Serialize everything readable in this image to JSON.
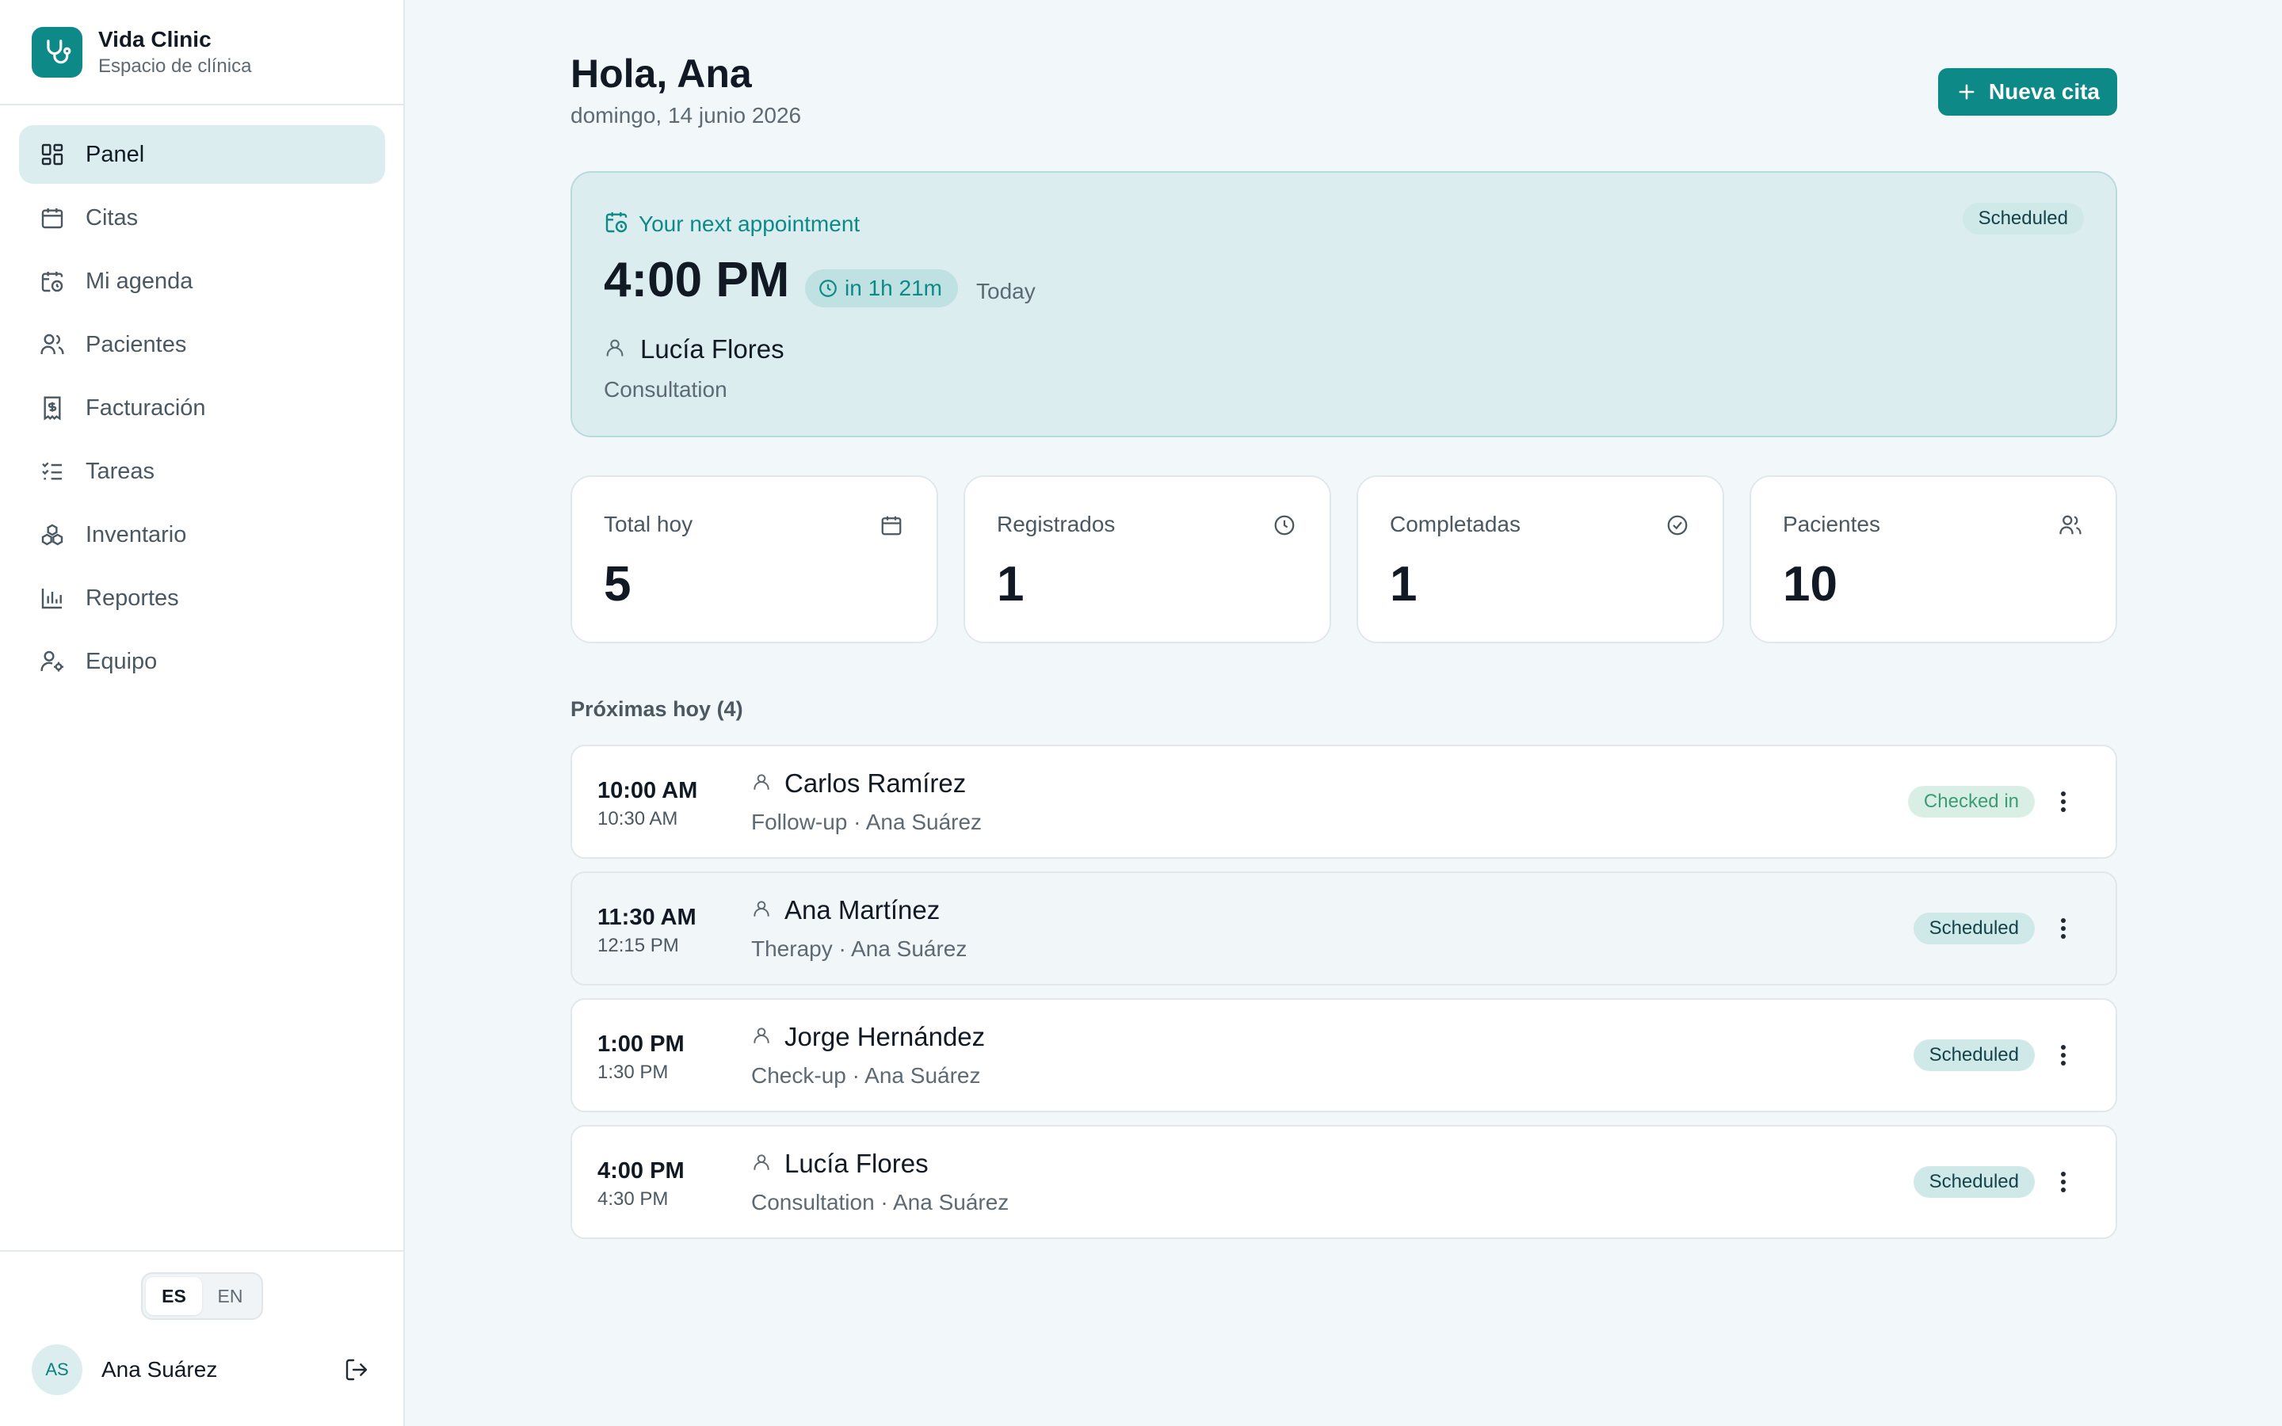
{
  "brand": {
    "name": "Vida Clinic",
    "subtitle": "Espacio de clínica",
    "logo_icon": "stethoscope-icon"
  },
  "sidebar": {
    "items": [
      {
        "label": "Panel",
        "icon": "dashboard-icon",
        "active": true
      },
      {
        "label": "Citas",
        "icon": "calendar-icon"
      },
      {
        "label": "Mi agenda",
        "icon": "calendar-clock-icon"
      },
      {
        "label": "Pacientes",
        "icon": "users-icon"
      },
      {
        "label": "Facturación",
        "icon": "receipt-icon"
      },
      {
        "label": "Tareas",
        "icon": "list-checks-icon"
      },
      {
        "label": "Inventario",
        "icon": "boxes-icon"
      },
      {
        "label": "Reportes",
        "icon": "bar-chart-icon"
      },
      {
        "label": "Equipo",
        "icon": "user-cog-icon"
      }
    ],
    "language": {
      "options": [
        "ES",
        "EN"
      ],
      "selected": "ES"
    },
    "user": {
      "initials": "AS",
      "name": "Ana Suárez"
    }
  },
  "header": {
    "greeting": "Hola, Ana",
    "date": "domingo, 14 junio 2026",
    "new_button": "Nueva cita"
  },
  "next_appointment": {
    "label": "Your next appointment",
    "status": "Scheduled",
    "time": "4:00 PM",
    "countdown": "in 1h 21m",
    "day": "Today",
    "patient": "Lucía Flores",
    "type": "Consultation"
  },
  "stats": [
    {
      "label": "Total hoy",
      "value": "5",
      "icon": "calendar-icon"
    },
    {
      "label": "Registrados",
      "value": "1",
      "icon": "clock-icon"
    },
    {
      "label": "Completadas",
      "value": "1",
      "icon": "check-circle-icon"
    },
    {
      "label": "Pacientes",
      "value": "10",
      "icon": "users-icon"
    }
  ],
  "upcoming": {
    "title": "Próximas hoy (4)",
    "items": [
      {
        "start": "10:00 AM",
        "end": "10:30 AM",
        "patient": "Carlos Ramírez",
        "detail": "Follow-up · Ana Suárez",
        "status": "Checked in"
      },
      {
        "start": "11:30 AM",
        "end": "12:15 PM",
        "patient": "Ana Martínez",
        "detail": "Therapy · Ana Suárez",
        "status": "Scheduled"
      },
      {
        "start": "1:00 PM",
        "end": "1:30 PM",
        "patient": "Jorge Hernández",
        "detail": "Check-up · Ana Suárez",
        "status": "Scheduled"
      },
      {
        "start": "4:00 PM",
        "end": "4:30 PM",
        "patient": "Lucía Flores",
        "detail": "Consultation · Ana Suárez",
        "status": "Scheduled"
      }
    ]
  },
  "colors": {
    "accent": "#0d8a88",
    "background": "#f2f7f9",
    "card_highlight": "#dcedef",
    "checked_in": "#3c9c72"
  }
}
